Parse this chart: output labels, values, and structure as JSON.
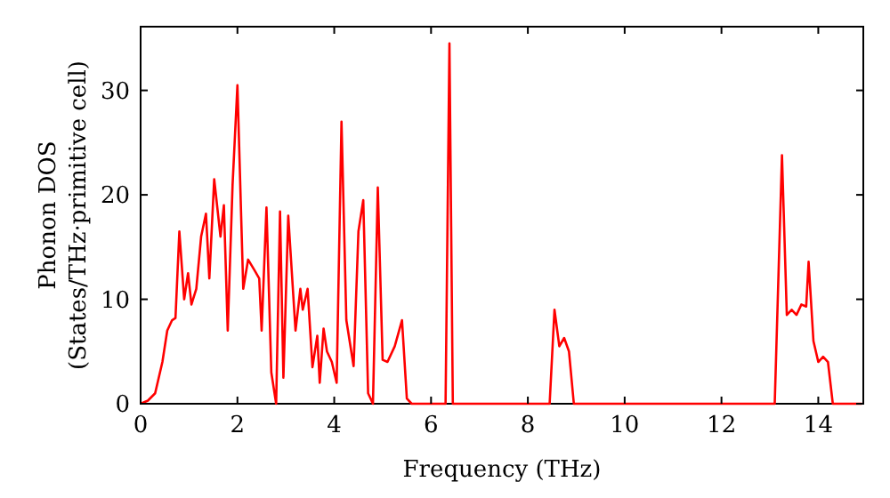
{
  "chart_data": {
    "type": "line",
    "xlabel": "Frequency (THz)",
    "ylabel": "Phonon DOS\n(States/THz·primitive cell)",
    "xlim": [
      0,
      14.93
    ],
    "ylim": [
      0,
      36.1
    ],
    "xticks": [
      0,
      2,
      4,
      6,
      8,
      10,
      12,
      14
    ],
    "yticks": [
      0,
      10,
      20,
      30
    ],
    "grid": false,
    "series": [
      {
        "color": "#ff0000",
        "x": [
          0,
          0.15,
          0.3,
          0.45,
          0.55,
          0.65,
          0.72,
          0.8,
          0.9,
          0.98,
          1.05,
          1.15,
          1.25,
          1.35,
          1.42,
          1.52,
          1.65,
          1.72,
          1.8,
          1.9,
          2.0,
          2.12,
          2.22,
          2.35,
          2.45,
          2.5,
          2.6,
          2.7,
          2.8,
          2.88,
          2.95,
          3.05,
          3.2,
          3.3,
          3.35,
          3.45,
          3.55,
          3.65,
          3.7,
          3.78,
          3.85,
          3.95,
          4.05,
          4.15,
          4.25,
          4.4,
          4.5,
          4.6,
          4.7,
          4.8,
          4.9,
          5.0,
          5.1,
          5.25,
          5.4,
          5.5,
          5.6,
          6.3,
          6.38,
          6.45,
          8.45,
          8.55,
          8.65,
          8.75,
          8.85,
          8.95,
          13.1,
          13.25,
          13.35,
          13.45,
          13.55,
          13.65,
          13.75,
          13.8,
          13.9,
          14.0,
          14.1,
          14.2,
          14.3,
          14.9
        ],
        "values": [
          0,
          0.3,
          1,
          4,
          7,
          8,
          8.2,
          16.5,
          10,
          12.5,
          9.5,
          11,
          16,
          18.2,
          12,
          21.5,
          16,
          19,
          7,
          21,
          30.5,
          11,
          13.8,
          12.8,
          12,
          7,
          18.8,
          3,
          0,
          18.4,
          2.5,
          18,
          7,
          11,
          9,
          11,
          3.5,
          6.5,
          2,
          7.2,
          5,
          4,
          2,
          27,
          8,
          3.6,
          16.5,
          19.5,
          1,
          0,
          20.7,
          4.2,
          4,
          5.5,
          8,
          0.5,
          0,
          0,
          34.5,
          0,
          0,
          9,
          5.5,
          6.3,
          5,
          0,
          0,
          23.8,
          8.5,
          9,
          8.5,
          9.5,
          9.3,
          13.6,
          6,
          4,
          4.5,
          4,
          0,
          0
        ]
      }
    ]
  }
}
